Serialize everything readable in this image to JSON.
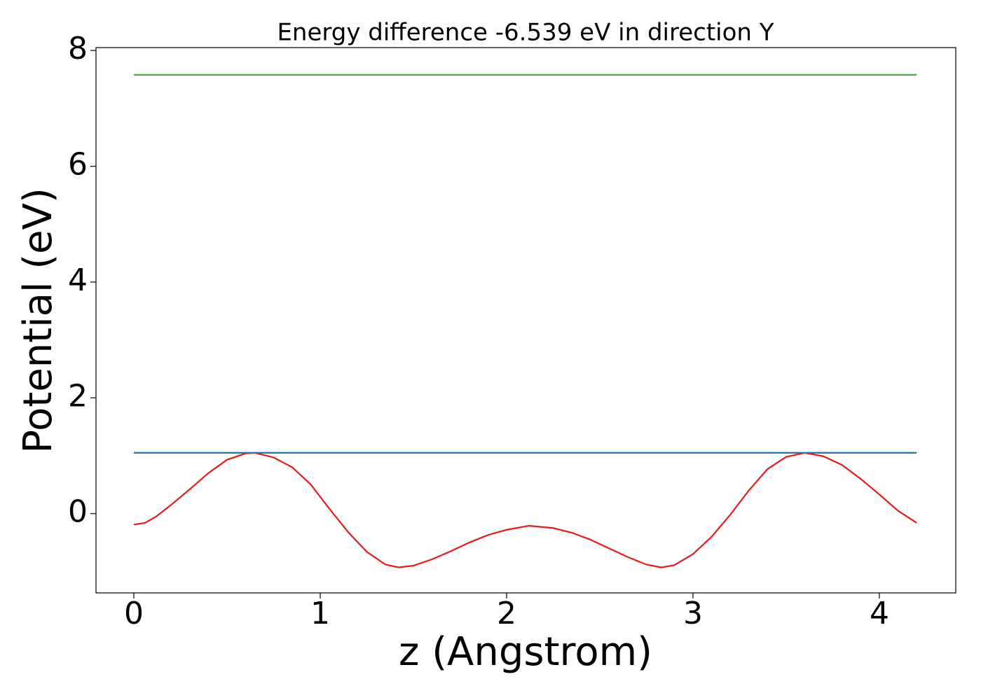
{
  "chart_data": {
    "type": "line",
    "title": "Energy difference -6.539 eV in direction Y",
    "xlabel": "z (Angstrom)",
    "ylabel": "Potential (eV)",
    "xlim": [
      -0.203,
      4.41
    ],
    "ylim": [
      -1.37,
      8.05
    ],
    "xticks": [
      0,
      1,
      2,
      3,
      4
    ],
    "yticks": [
      0,
      2,
      4,
      6,
      8
    ],
    "series": [
      {
        "color": "#e41a1c",
        "x": [
          0,
          0.06,
          0.12,
          0.2,
          0.3,
          0.4,
          0.5,
          0.6,
          0.65,
          0.75,
          0.85,
          0.95,
          1.05,
          1.15,
          1.25,
          1.35,
          1.42,
          1.5,
          1.6,
          1.7,
          1.8,
          1.9,
          2.0,
          2.12,
          2.25,
          2.35,
          2.45,
          2.55,
          2.65,
          2.75,
          2.83,
          2.9,
          3.0,
          3.1,
          3.2,
          3.3,
          3.4,
          3.5,
          3.6,
          3.7,
          3.8,
          3.9,
          4.0,
          4.1,
          4.2
        ],
        "values": [
          -0.19,
          -0.16,
          -0.05,
          0.15,
          0.42,
          0.7,
          0.93,
          1.04,
          1.05,
          0.97,
          0.8,
          0.5,
          0.08,
          -0.32,
          -0.66,
          -0.88,
          -0.93,
          -0.9,
          -0.79,
          -0.65,
          -0.5,
          -0.37,
          -0.28,
          -0.21,
          -0.25,
          -0.33,
          -0.45,
          -0.6,
          -0.75,
          -0.88,
          -0.93,
          -0.89,
          -0.7,
          -0.4,
          -0.02,
          0.4,
          0.77,
          0.98,
          1.05,
          0.99,
          0.84,
          0.6,
          0.33,
          0.05,
          -0.16
        ]
      },
      {
        "color": "#1f77b4",
        "x": [
          0,
          4.2
        ],
        "values": [
          1.05,
          1.05
        ]
      },
      {
        "color": "#4daf4a",
        "x": [
          0,
          4.2
        ],
        "values": [
          7.58,
          7.58
        ]
      }
    ]
  }
}
